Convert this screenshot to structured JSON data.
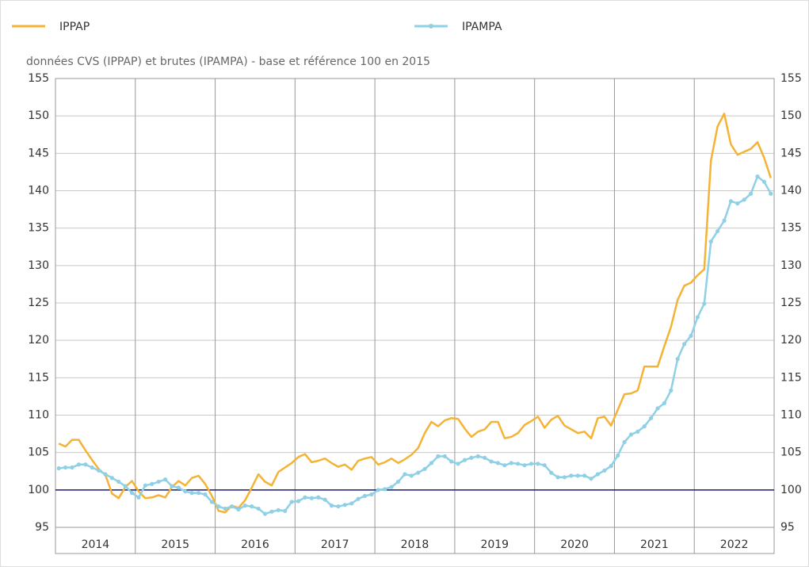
{
  "chart_data": {
    "type": "line",
    "subtitle": "données CVS (IPPAP) et brutes (IPAMPA) - base et référence 100 en 2015",
    "year_labels": [
      "2014",
      "2015",
      "2016",
      "2017",
      "2018",
      "2019",
      "2020",
      "2021",
      "2022"
    ],
    "ylim": [
      95,
      155
    ],
    "yticks": [
      95,
      100,
      105,
      110,
      115,
      120,
      125,
      130,
      135,
      140,
      145,
      150,
      155
    ],
    "grid": true,
    "reference_line": 100,
    "reference_color": "#1a1a7a",
    "series": [
      {
        "name": "IPPAP",
        "color": "#f5b335",
        "markers": false,
        "values": [
          106.2,
          105.8,
          106.7,
          106.7,
          105.3,
          104.0,
          102.8,
          102.0,
          99.5,
          98.9,
          100.4,
          101.2,
          99.8,
          98.9,
          99.0,
          99.3,
          99.0,
          100.4,
          101.2,
          100.6,
          101.6,
          101.9,
          100.8,
          99.2,
          97.2,
          97.0,
          97.9,
          97.6,
          98.6,
          100.3,
          102.1,
          101.1,
          100.6,
          102.4,
          103.0,
          103.6,
          104.4,
          104.8,
          103.7,
          103.9,
          104.2,
          103.6,
          103.1,
          103.4,
          102.7,
          103.9,
          104.2,
          104.4,
          103.4,
          103.7,
          104.2,
          103.6,
          104.1,
          104.7,
          105.6,
          107.6,
          109.1,
          108.5,
          109.3,
          109.6,
          109.5,
          108.2,
          107.1,
          107.8,
          108.1,
          109.1,
          109.1,
          106.9,
          107.1,
          107.6,
          108.7,
          109.2,
          109.8,
          108.3,
          109.4,
          109.9,
          108.6,
          108.1,
          107.6,
          107.8,
          106.9,
          109.6,
          109.8,
          108.6,
          110.7,
          112.8,
          112.9,
          113.3,
          116.5,
          116.5,
          116.5,
          119.2,
          121.8,
          125.4,
          127.3,
          127.7,
          128.7,
          129.5,
          144.0,
          148.6,
          150.3,
          146.2,
          144.8,
          145.2,
          145.6,
          146.5,
          144.4,
          141.7
        ]
      },
      {
        "name": "IPAMPA",
        "color": "#8fd0e6",
        "markers": true,
        "values": [
          102.9,
          103.0,
          103.0,
          103.4,
          103.4,
          103.0,
          102.6,
          102.1,
          101.6,
          101.1,
          100.5,
          99.6,
          99.0,
          100.6,
          100.8,
          101.1,
          101.4,
          100.5,
          100.3,
          99.8,
          99.6,
          99.6,
          99.4,
          98.4,
          97.8,
          97.5,
          97.8,
          97.4,
          97.9,
          97.8,
          97.5,
          96.8,
          97.1,
          97.3,
          97.2,
          98.4,
          98.5,
          99.0,
          98.9,
          99.0,
          98.7,
          97.9,
          97.8,
          98.0,
          98.2,
          98.8,
          99.2,
          99.4,
          100.0,
          100.1,
          100.4,
          101.1,
          102.1,
          101.9,
          102.3,
          102.8,
          103.6,
          104.5,
          104.5,
          103.8,
          103.5,
          104.0,
          104.3,
          104.5,
          104.3,
          103.8,
          103.6,
          103.3,
          103.6,
          103.5,
          103.3,
          103.5,
          103.5,
          103.3,
          102.3,
          101.7,
          101.7,
          101.9,
          101.9,
          101.9,
          101.5,
          102.1,
          102.6,
          103.2,
          104.6,
          106.4,
          107.4,
          107.8,
          108.5,
          109.6,
          110.9,
          111.6,
          113.3,
          117.5,
          119.5,
          120.6,
          123.1,
          124.9,
          133.2,
          134.6,
          136.0,
          138.6,
          138.3,
          138.8,
          139.6,
          141.9,
          141.2,
          139.6
        ]
      }
    ]
  }
}
